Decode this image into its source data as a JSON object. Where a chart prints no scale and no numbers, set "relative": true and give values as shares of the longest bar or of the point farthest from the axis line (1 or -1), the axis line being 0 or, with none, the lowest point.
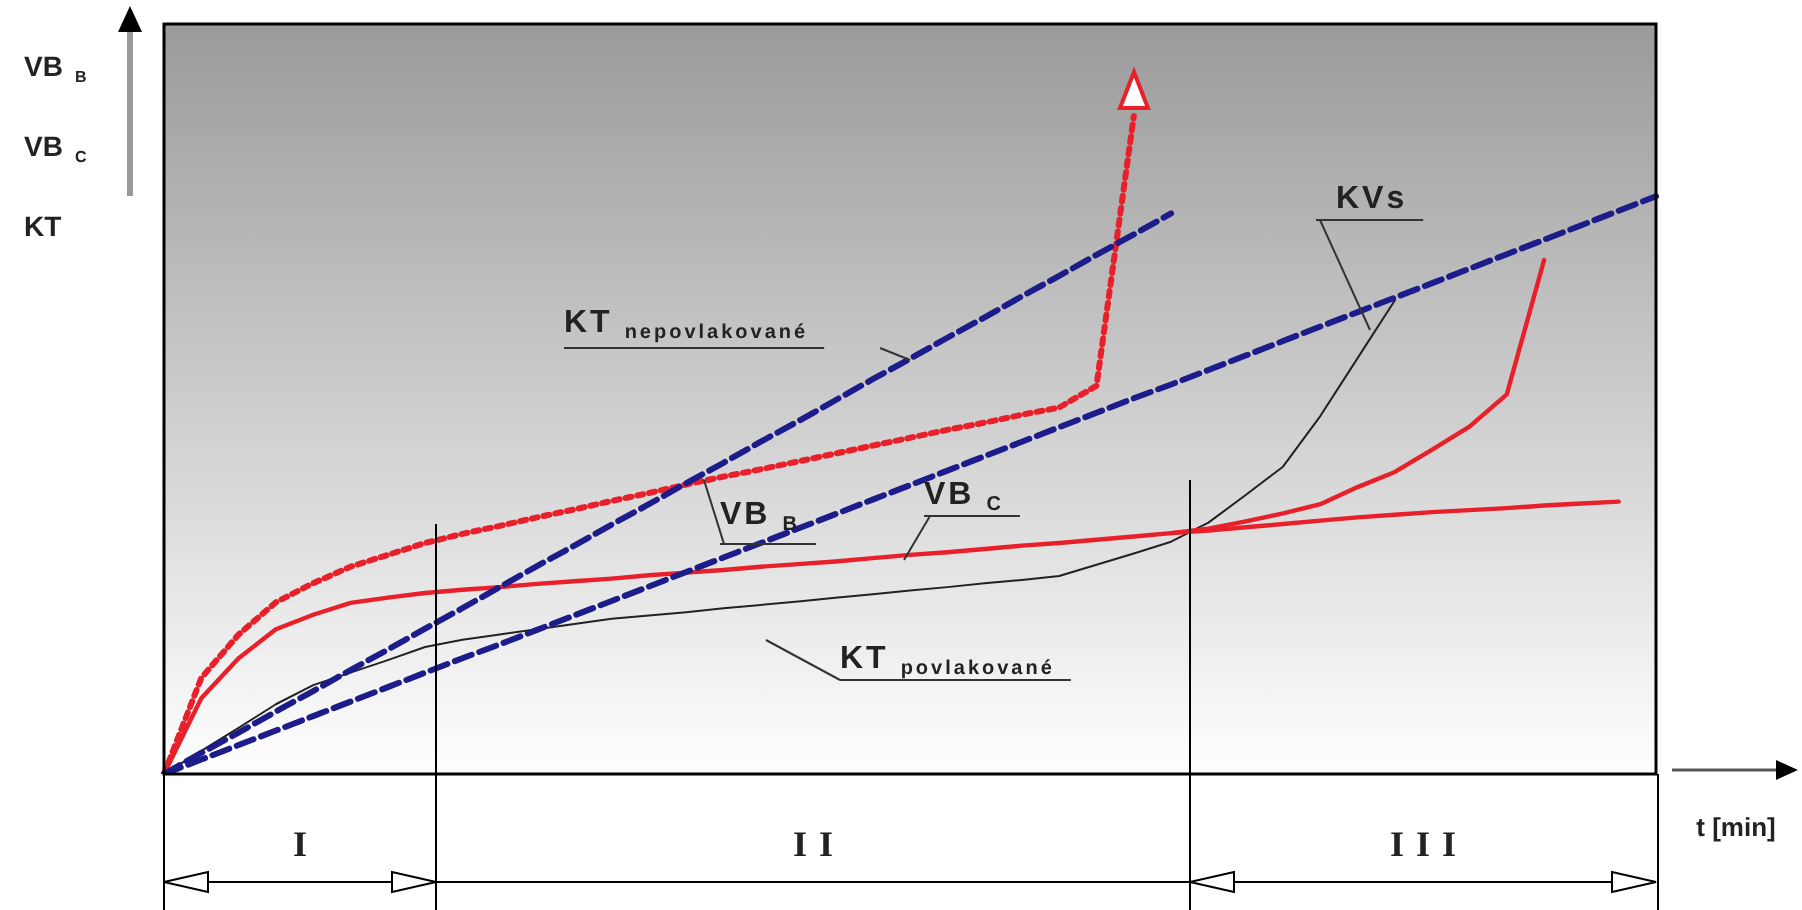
{
  "chart_data": {
    "type": "line",
    "relative": true,
    "xlabel": "t [min]",
    "ylabel": "VB$_{B}$\nVB$_{C}$\nKT",
    "tick_labels": false,
    "marker": "none",
    "categories": [
      null,
      null,
      null,
      null,
      null,
      null,
      null,
      null,
      null,
      null,
      null,
      null,
      null,
      null,
      null,
      null,
      null,
      null,
      null,
      null,
      null,
      null,
      null,
      null,
      null,
      null,
      null,
      null,
      null,
      null,
      null,
      null,
      null,
      null,
      null,
      null,
      null,
      null,
      null,
      null,
      null
    ],
    "series": [
      {
        "color": "#1c1c8a",
        "line_style": "dashed",
        "values": [
          0,
          0.032,
          0.063,
          0.095,
          0.126,
          0.158,
          0.189,
          0.221,
          0.252,
          0.284,
          0.316,
          0.347,
          0.379,
          0.41,
          0.442,
          0.473,
          0.505,
          0.536,
          0.568,
          0.6,
          0.631,
          0.663,
          0.694,
          0.726,
          0.757,
          0.789,
          0.82,
          0.852,
          null,
          null,
          null,
          null,
          null,
          null,
          null,
          null,
          null,
          null,
          null,
          null,
          null
        ]
      },
      {
        "color": "#1c1c8a",
        "line_style": "dashed",
        "values": [
          0,
          0.022,
          0.044,
          0.066,
          0.088,
          0.11,
          0.132,
          0.154,
          0.176,
          0.197,
          0.219,
          0.241,
          0.263,
          0.285,
          0.307,
          0.329,
          0.351,
          0.373,
          0.395,
          0.417,
          0.439,
          0.461,
          0.483,
          0.505,
          0.527,
          0.549,
          0.571,
          0.592,
          0.614,
          0.636,
          0.658,
          0.68,
          0.702,
          0.724,
          0.746,
          0.768,
          0.79,
          0.812,
          0.834,
          0.856,
          0.878
        ]
      },
      {
        "color": "#e8202a",
        "line_style": "dotted",
        "values": [
          0,
          0.146,
          0.212,
          0.261,
          0.29,
          0.315,
          0.333,
          0.351,
          0.365,
          0.377,
          0.39,
          0.402,
          0.415,
          0.427,
          0.44,
          0.452,
          0.463,
          0.475,
          0.487,
          0.499,
          0.511,
          0.523,
          0.534,
          0.546,
          0.557,
          0.59,
          1,
          null,
          null,
          null,
          null,
          null,
          null,
          null,
          null,
          null,
          null,
          null,
          null,
          null,
          null
        ]
      },
      {
        "color": "#e8202a",
        "line_style": "solid",
        "values": [
          0,
          0.115,
          0.176,
          0.22,
          0.242,
          0.26,
          0.268,
          0.275,
          0.28,
          0.284,
          0.289,
          0.293,
          0.297,
          0.302,
          0.306,
          0.31,
          0.315,
          0.319,
          0.323,
          0.328,
          0.333,
          0.337,
          0.342,
          0.347,
          0.351,
          0.356,
          0.361,
          0.366,
          0.37,
          0.375,
          0.38,
          0.385,
          0.39,
          0.394,
          0.398,
          0.401,
          0.404,
          0.408,
          0.411,
          0.414,
          null
        ]
      },
      {
        "color": "#e8202a",
        "line_style": "solid",
        "values": [
          null,
          null,
          null,
          null,
          null,
          null,
          null,
          null,
          null,
          null,
          null,
          null,
          null,
          null,
          null,
          null,
          null,
          null,
          null,
          null,
          null,
          null,
          null,
          null,
          null,
          null,
          null,
          0.366,
          0.373,
          0.384,
          0.396,
          0.41,
          0.436,
          0.459,
          0.493,
          0.528,
          0.577,
          0.781,
          null,
          null,
          null
        ]
      },
      {
        "color": "#222222",
        "line_style": "solid",
        "values": [
          0,
          0.035,
          0.07,
          0.106,
          0.135,
          0.154,
          0.173,
          0.193,
          0.204,
          0.212,
          0.22,
          0.228,
          0.236,
          0.241,
          0.246,
          0.252,
          0.257,
          0.262,
          0.268,
          0.273,
          0.279,
          0.284,
          0.29,
          0.295,
          0.301,
          0.318,
          0.335,
          0.353,
          0.382,
          0.424,
          0.467,
          0.544,
          0.632,
          0.72,
          null,
          null,
          null,
          null,
          null,
          null,
          null
        ]
      }
    ],
    "annotations": [
      "KT$_{nepovlakované}$",
      "VB$_{B}$",
      "VB$_{C}$",
      "KVs",
      "KT$_{povlakované}$",
      "I",
      "II",
      "III"
    ]
  }
}
